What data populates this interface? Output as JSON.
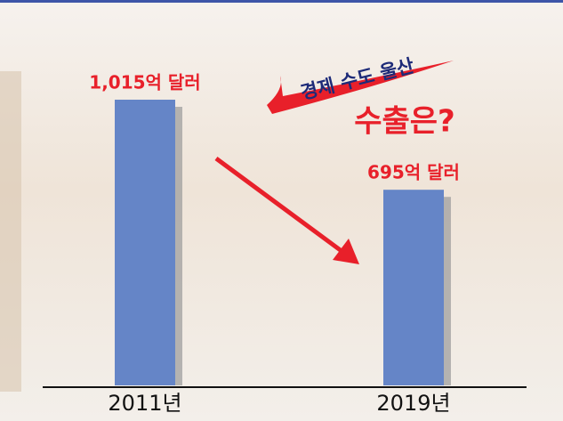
{
  "chart_data": {
    "type": "bar",
    "annotations": [
      "경제 수도 울산",
      "수출은?"
    ],
    "categories": [
      "2011년",
      "2019년"
    ],
    "values": [
      1015,
      695
    ],
    "value_labels": [
      "1,015억 달러",
      "695억 달러"
    ],
    "color": "#6585c7",
    "label_color": "#e8202a"
  }
}
